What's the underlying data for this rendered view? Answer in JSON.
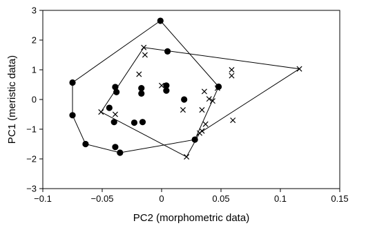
{
  "chart_data": {
    "type": "scatter",
    "title": "",
    "xlabel": "PC2 (morphometric data)",
    "ylabel": "PC1 (meristic data)",
    "xlim": [
      -0.1,
      0.15
    ],
    "ylim": [
      -3,
      3
    ],
    "x_ticks": [
      -0.1,
      -0.05,
      0,
      0.05,
      0.1,
      0.15
    ],
    "x_tick_labels": [
      "−0.1",
      "−0.05",
      "0",
      "0.05",
      "0.1",
      "0.15"
    ],
    "y_ticks": [
      -3,
      -2,
      -1,
      0,
      1,
      2,
      3
    ],
    "y_tick_labels": [
      "−3",
      "−2",
      "−1",
      "0",
      "1",
      "2",
      "3"
    ],
    "grid": false,
    "legend": "none",
    "series": [
      {
        "marker": "filled-circle",
        "hull": true,
        "points": [
          [
            -0.001,
            2.65
          ],
          [
            0.005,
            1.62
          ],
          [
            -0.075,
            0.57
          ],
          [
            -0.039,
            0.42
          ],
          [
            -0.038,
            0.25
          ],
          [
            -0.017,
            0.38
          ],
          [
            -0.017,
            0.2
          ],
          [
            0.004,
            0.47
          ],
          [
            0.004,
            0.3
          ],
          [
            0.019,
            0.0
          ],
          [
            0.048,
            0.43
          ],
          [
            -0.044,
            -0.28
          ],
          [
            -0.075,
            -0.53
          ],
          [
            -0.04,
            -0.76
          ],
          [
            -0.023,
            -0.78
          ],
          [
            -0.016,
            -0.76
          ],
          [
            -0.064,
            -1.5
          ],
          [
            -0.039,
            -1.6
          ],
          [
            -0.035,
            -1.79
          ],
          [
            0.028,
            -1.35
          ]
        ],
        "hull_order": [
          [
            -0.001,
            2.65
          ],
          [
            0.048,
            0.43
          ],
          [
            0.028,
            -1.35
          ],
          [
            -0.035,
            -1.79
          ],
          [
            -0.064,
            -1.5
          ],
          [
            -0.075,
            -0.53
          ],
          [
            -0.075,
            0.57
          ]
        ]
      },
      {
        "marker": "x",
        "hull": true,
        "points": [
          [
            -0.015,
            1.75
          ],
          [
            -0.014,
            1.5
          ],
          [
            -0.019,
            0.85
          ],
          [
            0.0,
            0.47
          ],
          [
            0.036,
            0.27
          ],
          [
            0.059,
            1.0
          ],
          [
            0.059,
            0.8
          ],
          [
            0.047,
            0.38
          ],
          [
            0.04,
            0.02
          ],
          [
            0.043,
            -0.05
          ],
          [
            0.034,
            -0.35
          ],
          [
            0.018,
            -0.35
          ],
          [
            0.037,
            -0.83
          ],
          [
            0.034,
            -1.06
          ],
          [
            0.032,
            -1.13
          ],
          [
            0.06,
            -0.7
          ],
          [
            -0.051,
            -0.42
          ],
          [
            -0.039,
            -0.5
          ],
          [
            0.021,
            -1.93
          ],
          [
            0.116,
            1.03
          ]
        ],
        "hull_order": [
          [
            -0.015,
            1.75
          ],
          [
            0.116,
            1.03
          ],
          [
            0.032,
            -1.13
          ],
          [
            0.021,
            -1.93
          ],
          [
            -0.051,
            -0.42
          ]
        ]
      }
    ]
  }
}
